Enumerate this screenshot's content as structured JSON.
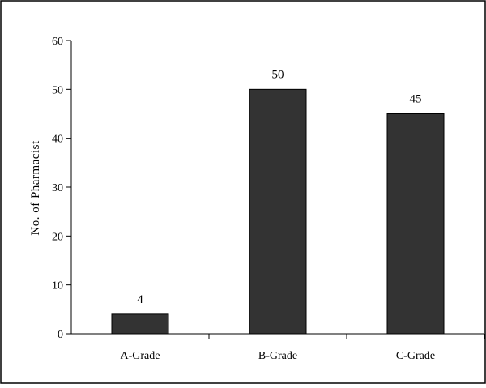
{
  "chart_data": {
    "type": "bar",
    "categories": [
      "A-Grade",
      "B-Grade",
      "C-Grade"
    ],
    "values": [
      4,
      50,
      45
    ],
    "data_labels": [
      "4",
      "50",
      "45"
    ],
    "title": "",
    "xlabel": "",
    "ylabel": "No. of Pharmacist",
    "ylim": [
      0,
      60
    ],
    "yticks": [
      0,
      10,
      20,
      30,
      40,
      50,
      60
    ],
    "grid": false,
    "legend": "none",
    "bar_color": "#333333"
  }
}
